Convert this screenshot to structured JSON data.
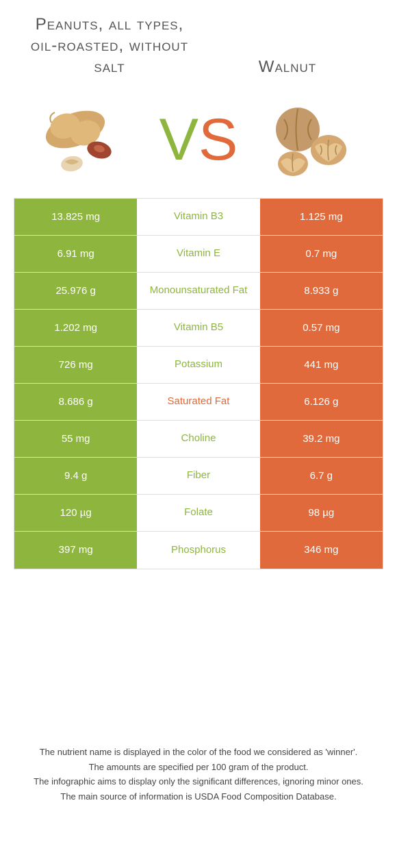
{
  "food1": {
    "title": "Peanuts, all types, oil-roasted, without salt"
  },
  "food2": {
    "title": "Walnut"
  },
  "vs": {
    "v_char": "V",
    "s_char": "S"
  },
  "colors": {
    "green": "#8eb63f",
    "orange": "#e06a3b",
    "green_text": "#8eb63f",
    "orange_text": "#e06a3b"
  },
  "rows": [
    {
      "left": "13.825 mg",
      "mid": "Vitamin B3",
      "right": "1.125 mg",
      "winner": "green"
    },
    {
      "left": "6.91 mg",
      "mid": "Vitamin E",
      "right": "0.7 mg",
      "winner": "green"
    },
    {
      "left": "25.976 g",
      "mid": "Monounsaturated Fat",
      "right": "8.933 g",
      "winner": "green"
    },
    {
      "left": "1.202 mg",
      "mid": "Vitamin B5",
      "right": "0.57 mg",
      "winner": "green"
    },
    {
      "left": "726 mg",
      "mid": "Potassium",
      "right": "441 mg",
      "winner": "green"
    },
    {
      "left": "8.686 g",
      "mid": "Saturated Fat",
      "right": "6.126 g",
      "winner": "orange"
    },
    {
      "left": "55 mg",
      "mid": "Choline",
      "right": "39.2 mg",
      "winner": "green"
    },
    {
      "left": "9.4 g",
      "mid": "Fiber",
      "right": "6.7 g",
      "winner": "green"
    },
    {
      "left": "120 µg",
      "mid": "Folate",
      "right": "98 µg",
      "winner": "green"
    },
    {
      "left": "397 mg",
      "mid": "Phosphorus",
      "right": "346 mg",
      "winner": "green"
    }
  ],
  "footer": {
    "l1": "The nutrient name is displayed in the color of the food we considered as 'winner'.",
    "l2": "The amounts are specified per 100 gram of the product.",
    "l3": "The infographic aims to display only the significant differences, ignoring minor ones.",
    "l4": "The main source of information is USDA Food Composition Database."
  }
}
